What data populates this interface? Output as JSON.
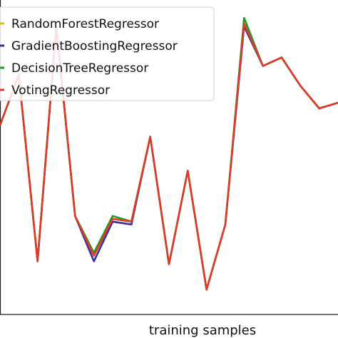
{
  "chart_data": {
    "type": "line",
    "title": "",
    "xlabel": "training samples",
    "ylabel": "",
    "x": [
      0,
      1,
      2,
      3,
      4,
      5,
      6,
      7,
      8,
      9,
      10,
      11,
      12,
      13,
      14,
      15,
      16,
      17,
      18
    ],
    "xlim": [
      0,
      18
    ],
    "ylim": [
      0,
      1
    ],
    "grid": false,
    "legend": {
      "position": "top-left"
    },
    "series": [
      {
        "name": "RandomForestRegressor",
        "color": "#c8c800",
        "values": [
          0.62,
          0.8,
          0.14,
          0.97,
          0.3,
          0.16,
          0.29,
          0.28,
          0.58,
          0.13,
          0.46,
          0.04,
          0.27,
          0.98,
          0.83,
          0.86,
          0.76,
          0.68,
          0.7
        ]
      },
      {
        "name": "GradientBoostingRegressor",
        "color": "#3b2fa0",
        "values": [
          0.62,
          0.8,
          0.14,
          0.97,
          0.3,
          0.14,
          0.28,
          0.27,
          0.58,
          0.13,
          0.46,
          0.04,
          0.27,
          0.97,
          0.83,
          0.86,
          0.76,
          0.68,
          0.7
        ]
      },
      {
        "name": "DecisionTreeRegressor",
        "color": "#1e9e1e",
        "values": [
          0.62,
          0.8,
          0.14,
          0.97,
          0.3,
          0.17,
          0.3,
          0.28,
          0.58,
          0.13,
          0.46,
          0.04,
          0.27,
          1.0,
          0.83,
          0.86,
          0.76,
          0.68,
          0.7
        ]
      },
      {
        "name": "VotingRegressor",
        "color": "#e03a2a",
        "values": [
          0.62,
          0.8,
          0.14,
          0.97,
          0.3,
          0.16,
          0.29,
          0.28,
          0.58,
          0.13,
          0.46,
          0.04,
          0.27,
          0.98,
          0.83,
          0.86,
          0.76,
          0.68,
          0.7
        ]
      }
    ]
  }
}
